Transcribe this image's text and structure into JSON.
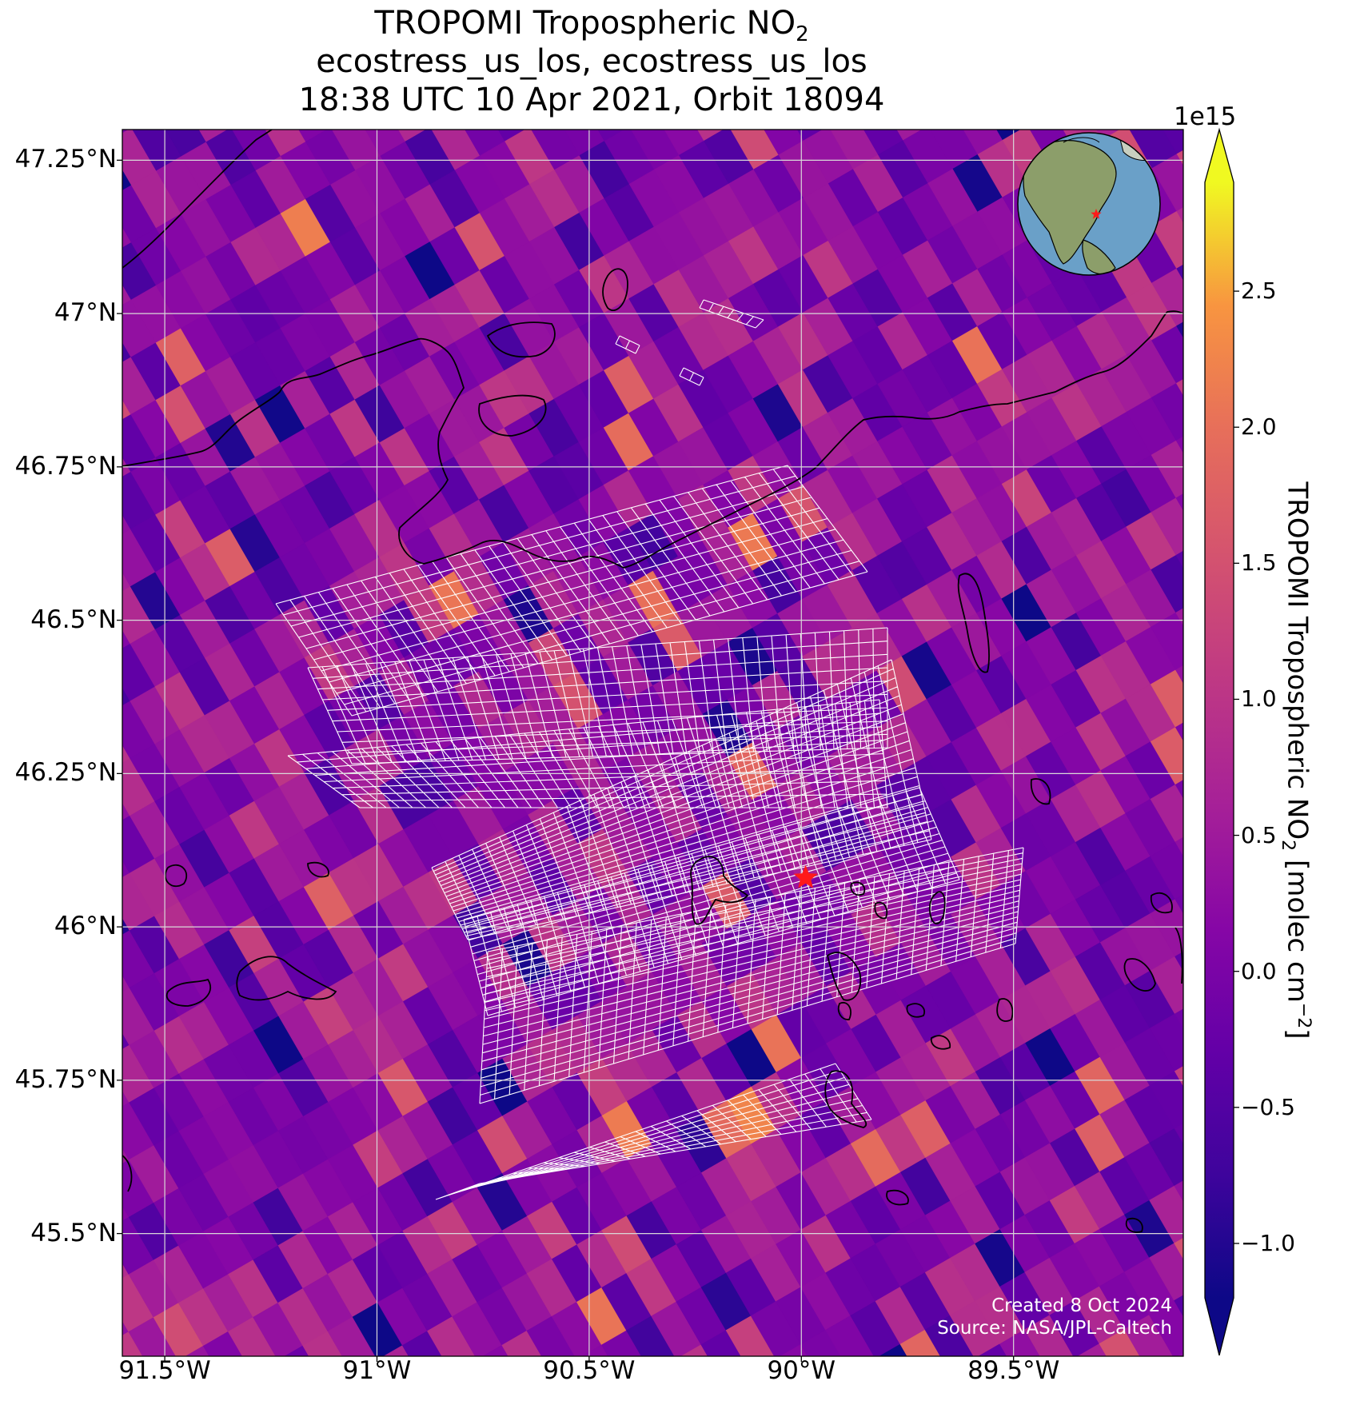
{
  "title": {
    "line1_main": "TROPOMI Tropospheric NO",
    "line1_sub": "2",
    "line2": "ecostress_us_los, ecostress_us_los",
    "line3": "18:38 UTC 10 Apr 2021, Orbit 18094"
  },
  "map": {
    "lon_range": [
      -91.6,
      -89.1
    ],
    "lat_range": [
      45.3,
      47.3
    ],
    "lat_ticks": [
      {
        "value": 47.25,
        "label": "47.25°N"
      },
      {
        "value": 47.0,
        "label": "47°N"
      },
      {
        "value": 46.75,
        "label": "46.75°N"
      },
      {
        "value": 46.5,
        "label": "46.5°N"
      },
      {
        "value": 46.25,
        "label": "46.25°N"
      },
      {
        "value": 46.0,
        "label": "46°N"
      },
      {
        "value": 45.75,
        "label": "45.75°N"
      },
      {
        "value": 45.5,
        "label": "45.5°N"
      }
    ],
    "lon_ticks": [
      {
        "value": -91.5,
        "label": "91.5°W"
      },
      {
        "value": -91.0,
        "label": "91°W"
      },
      {
        "value": -90.5,
        "label": "90.5°W"
      },
      {
        "value": -90.0,
        "label": "90°W"
      },
      {
        "value": -89.5,
        "label": "89.5°W"
      }
    ],
    "target_marker": {
      "lon": -89.99,
      "lat": 46.08,
      "color": "#ff1a1a",
      "icon": "red-star-icon"
    },
    "background_colormap": "plasma",
    "ecostress_grid_color": "#ffffff",
    "coastline_color": "#000000",
    "inset_globe": {
      "icon": "globe-icon",
      "ocean_color": "#6aa0c8",
      "land_color": "#8c9e6a",
      "marker_color": "#ff1a1a"
    }
  },
  "colorbar": {
    "label_main": "TROPOMI Tropospheric NO",
    "label_sub": "2",
    "label_unit_open": " [molec cm",
    "label_unit_sup": "−2",
    "label_unit_close": "]",
    "exponent": "1e15",
    "vmin": -1.2,
    "vmax": 2.9,
    "ticks": [
      {
        "value": 2.5,
        "label": "2.5"
      },
      {
        "value": 2.0,
        "label": "2.0"
      },
      {
        "value": 1.5,
        "label": "1.5"
      },
      {
        "value": 1.0,
        "label": "1.0"
      },
      {
        "value": 0.5,
        "label": "0.5"
      },
      {
        "value": 0.0,
        "label": "0.0"
      },
      {
        "value": -0.5,
        "label": "−0.5"
      },
      {
        "value": -1.0,
        "label": "−1.0"
      }
    ],
    "extend": "both",
    "colormap": "plasma"
  },
  "credits": {
    "created": "Created 8 Oct 2024",
    "source": "Source: NASA/JPL-Caltech"
  }
}
